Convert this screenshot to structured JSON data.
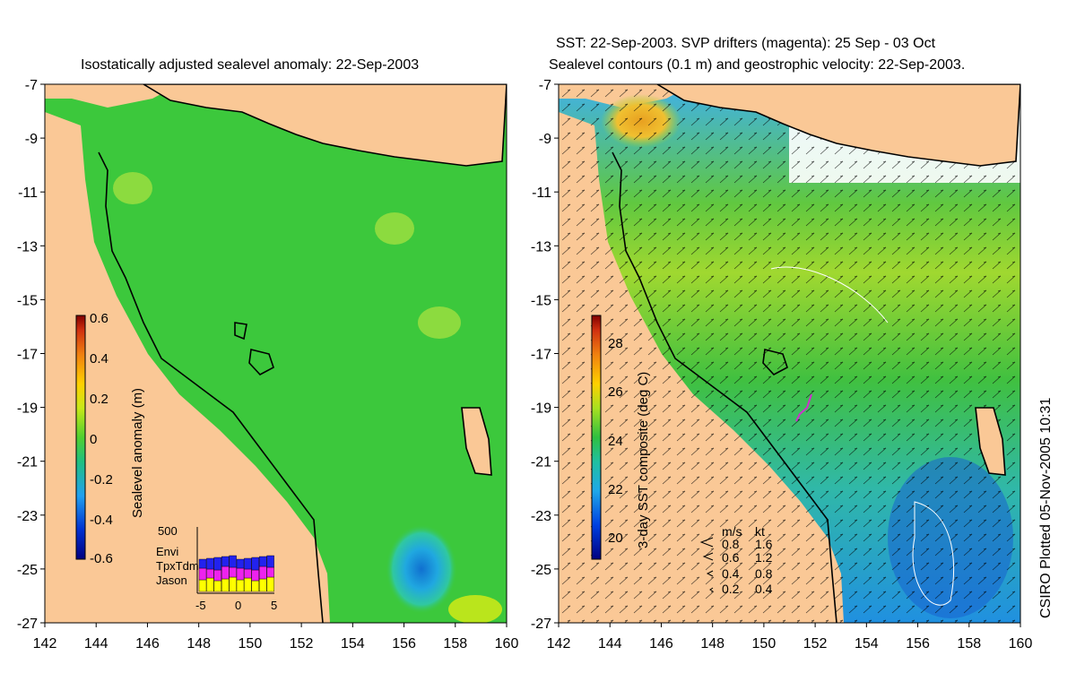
{
  "left_panel": {
    "title": "Isostatically adjusted sealevel anomaly: 22-Sep-2003",
    "colorbar": {
      "label": "Sealevel anomaly (m)",
      "ticks": [
        "0.6",
        "0.4",
        "0.2",
        "0",
        "-0.2",
        "-0.4",
        "-0.6"
      ],
      "range": [
        -0.6,
        0.6
      ]
    },
    "inset": {
      "ymax_label": "500",
      "x_ticks": [
        "-5",
        "0",
        "5"
      ],
      "legend": [
        {
          "name": "Envi",
          "color": "#2222ee"
        },
        {
          "name": "TpxTdm",
          "color": "#ee22ee"
        },
        {
          "name": "Jason",
          "color": "#ffff00"
        }
      ]
    }
  },
  "right_panel": {
    "title_line1": "SST: 22-Sep-2003. SVP drifters (magenta): 25 Sep - 03 Oct",
    "title_line2": "Sealevel contours (0.1 m) and geostrophic velocity: 22-Sep-2003.",
    "colorbar": {
      "label": "3-day SST composite (deg C)",
      "ticks": [
        "28",
        "26",
        "24",
        "22",
        "20"
      ],
      "range": [
        19,
        29
      ]
    },
    "speed_legend": {
      "header_ms": "m/s",
      "header_kt": "kt",
      "rows": [
        {
          "ms": "0.8",
          "kt": "1.6"
        },
        {
          "ms": "0.6",
          "kt": "1.2"
        },
        {
          "ms": "0.4",
          "kt": "0.8"
        },
        {
          "ms": "0.2",
          "kt": "0.4"
        }
      ]
    }
  },
  "axes": {
    "lat_ticks": [
      "-7",
      "-9",
      "-11",
      "-13",
      "-15",
      "-17",
      "-19",
      "-21",
      "-23",
      "-25",
      "-27"
    ],
    "lon_ticks": [
      "142",
      "144",
      "146",
      "148",
      "150",
      "152",
      "154",
      "156",
      "158",
      "160"
    ]
  },
  "credit": "CSIRO Plotted 05-Nov-2005 10:31",
  "colors": {
    "land": "#fac896",
    "ocean_sla": "#3cc83c",
    "ocean_sst": "#28b428",
    "coast": "#000000"
  }
}
